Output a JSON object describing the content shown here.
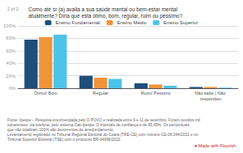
{
  "chart_data": {
    "type": "bar",
    "title": "Como até sr (a) avalia a sua saúde mental ou bem-estar mental atualmente? Diria que está ótimo, bom, regular, ruim ou péssimo?",
    "annotations": [
      "2 of 2",
      "Fonte: Ipespe – Pesquisa encomendada pelo O POVO e realizada entre 9 e 11 de setembro. Foram ouvidos mil sonarenses, via telefone, pelo sistema Cati Ipespe. O intervalo de confiança é de 95,45%. Os percentuais que não totalizam 100% são decorrentes de arredondamento.",
      "Levantamento registrado no Tribunal Regional Eleitoral do Ceará (TRE-CE) com número CE-09.044/2022 e no Tribunal Superior Eleitoral (TSE) com o protocolo BR-04996/2022.",
      "● Made with Flourish"
    ],
    "categories": [
      "Ótimo/ Bom",
      "Regular",
      "Ruim/ Péssimo",
      "Não sabe | Não respondeu"
    ],
    "series": [
      {
        "name": "Ensino Fundamental",
        "color": "#1f4e79",
        "values": [
          78,
          20,
          8,
          2
        ]
      },
      {
        "name": "Ensino Médio",
        "color": "#f0943a",
        "values": [
          82,
          17,
          6,
          2
        ]
      },
      {
        "name": "Ensino Superior",
        "color": "#4dc3e8",
        "values": [
          86,
          15,
          4,
          1
        ]
      }
    ],
    "ylim": [
      0,
      100
    ],
    "yticks": [
      {
        "value": 0,
        "label": "0%"
      },
      {
        "value": 20,
        "label": "20%"
      },
      {
        "value": 40,
        "label": "40%"
      },
      {
        "value": 60,
        "label": "60%"
      },
      {
        "value": 80,
        "label": "80%"
      },
      {
        "value": 100,
        "label": "100%"
      }
    ],
    "grid": true,
    "legend": "top"
  }
}
